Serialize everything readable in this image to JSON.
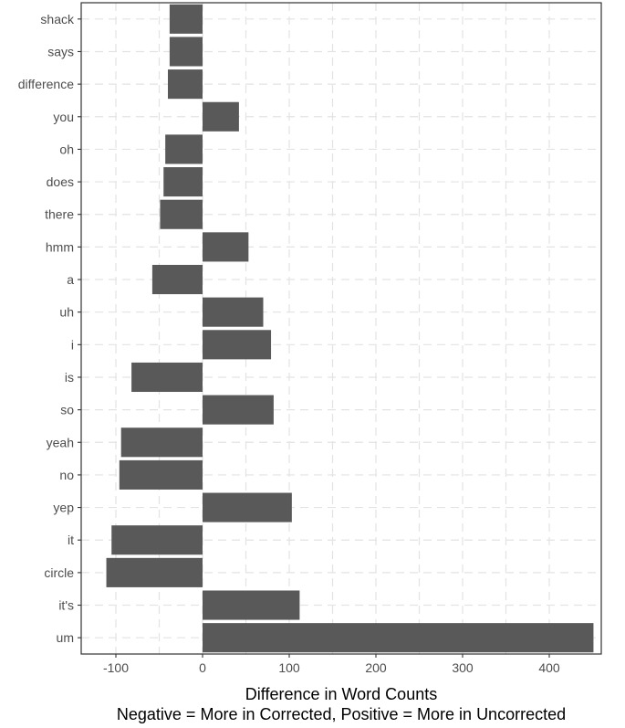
{
  "chart_data": {
    "type": "bar",
    "orientation": "horizontal",
    "categories": [
      "shack",
      "says",
      "difference",
      "you",
      "oh",
      "does",
      "there",
      "hmm",
      "a",
      "uh",
      "i",
      "is",
      "so",
      "yeah",
      "no",
      "yep",
      "it",
      "circle",
      "it's",
      "um"
    ],
    "values": [
      -38,
      -38,
      -40,
      42,
      -43,
      -45,
      -49,
      53,
      -58,
      70,
      79,
      -82,
      82,
      -94,
      -96,
      103,
      -105,
      -111,
      112,
      451
    ],
    "xlabel": "Difference in Word Counts",
    "xlabel2": "Negative = More in Corrected, Positive = More in Uncorrected",
    "xlim": [
      -140,
      460
    ],
    "xticks": [
      -100,
      0,
      100,
      200,
      300,
      400
    ],
    "xtick_labels": [
      "-100",
      "0",
      "100",
      "200",
      "300",
      "400"
    ],
    "grid": true,
    "grid_style": "dashed",
    "colors": {
      "bar": "#595959",
      "grid": "#e3e3e3",
      "panel_border": "#333333",
      "background": "#ffffff"
    }
  }
}
